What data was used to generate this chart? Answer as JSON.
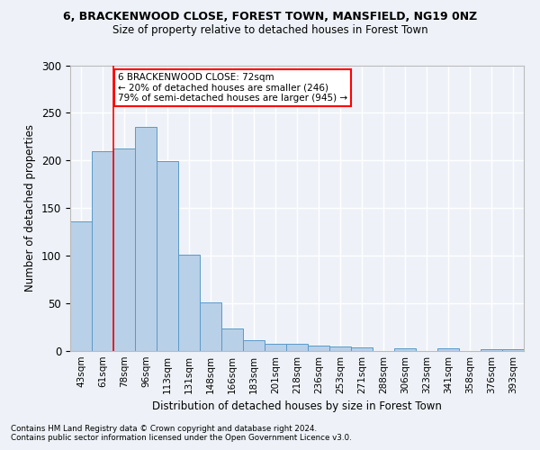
{
  "title": "6, BRACKENWOOD CLOSE, FOREST TOWN, MANSFIELD, NG19 0NZ",
  "subtitle": "Size of property relative to detached houses in Forest Town",
  "xlabel": "Distribution of detached houses by size in Forest Town",
  "ylabel": "Number of detached properties",
  "categories": [
    "43sqm",
    "61sqm",
    "78sqm",
    "96sqm",
    "113sqm",
    "131sqm",
    "148sqm",
    "166sqm",
    "183sqm",
    "201sqm",
    "218sqm",
    "236sqm",
    "253sqm",
    "271sqm",
    "288sqm",
    "306sqm",
    "323sqm",
    "341sqm",
    "358sqm",
    "376sqm",
    "393sqm"
  ],
  "values": [
    136,
    210,
    213,
    235,
    199,
    101,
    51,
    24,
    11,
    8,
    8,
    6,
    5,
    4,
    0,
    3,
    0,
    3,
    0,
    2,
    2
  ],
  "bar_color": "#b8d0e8",
  "bar_edge_color": "#5a9ac8",
  "red_line_x": 1.5,
  "annotation_text": "6 BRACKENWOOD CLOSE: 72sqm\n← 20% of detached houses are smaller (246)\n79% of semi-detached houses are larger (945) →",
  "annotation_box_color": "white",
  "annotation_box_edge": "red",
  "footer_line1": "Contains HM Land Registry data © Crown copyright and database right 2024.",
  "footer_line2": "Contains public sector information licensed under the Open Government Licence v3.0.",
  "ylim": [
    0,
    300
  ],
  "yticks": [
    0,
    50,
    100,
    150,
    200,
    250,
    300
  ],
  "background_color": "#eef2f8",
  "grid_color": "white"
}
